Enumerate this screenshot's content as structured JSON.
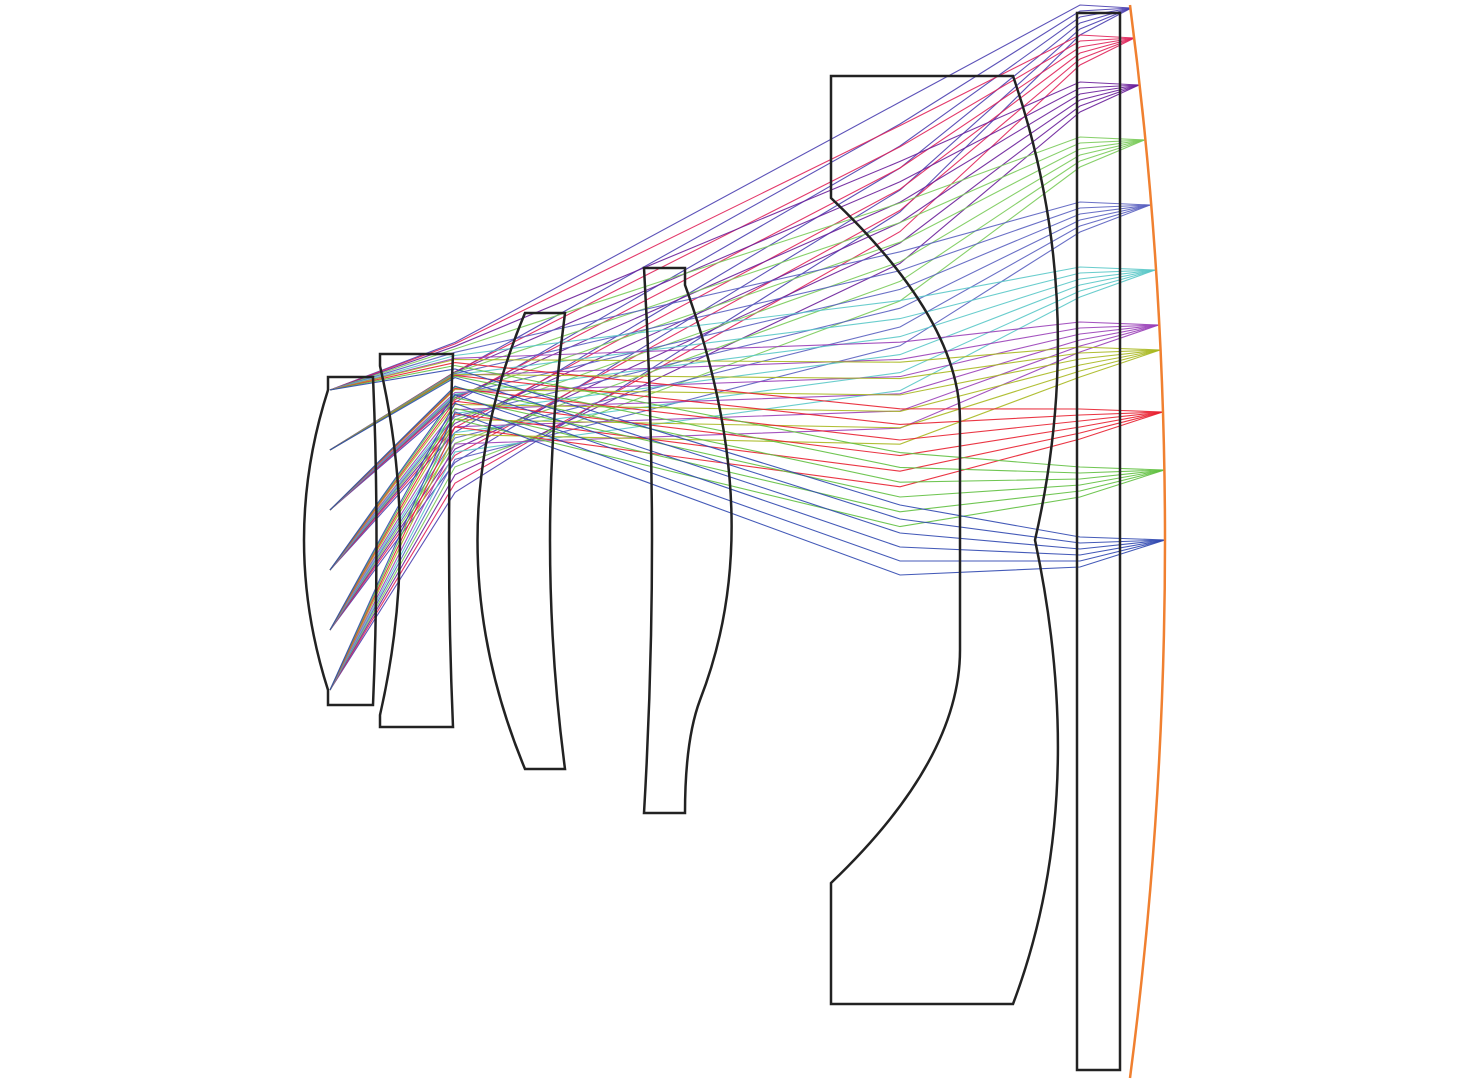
{
  "diagram": {
    "type": "optical-ray-trace",
    "element_count": 6,
    "lens_outline_color": "#222222",
    "image_surface_color": "#f08030",
    "ray_colors_by_field": [
      "#4a3fb0",
      "#e0245a",
      "#6a1f9a",
      "#7acb5a",
      "#5a60c0",
      "#5ac8c8",
      "#9a40b8",
      "#a8b820",
      "#e82030",
      "#60c040",
      "#3048b0"
    ],
    "rays_per_field": 6
  }
}
